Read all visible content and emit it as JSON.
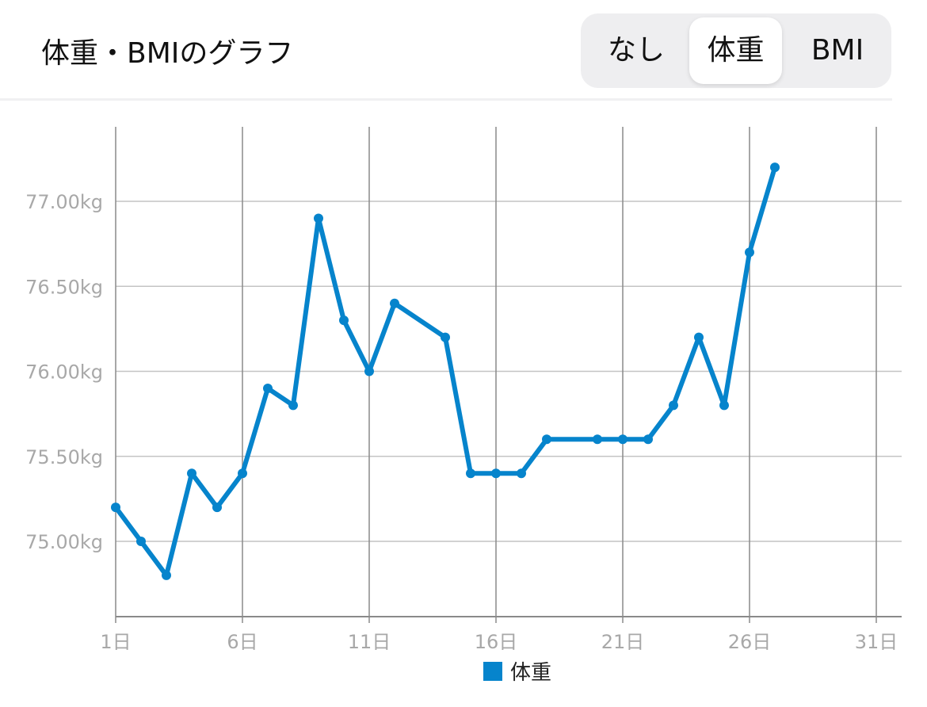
{
  "header": {
    "title": "体重・BMIのグラフ"
  },
  "segmented": {
    "options": [
      "なし",
      "体重",
      "BMI"
    ],
    "selected": "体重"
  },
  "chart_data": {
    "type": "line",
    "x_ticks": [
      "1日",
      "6日",
      "11日",
      "16日",
      "21日",
      "26日",
      "31日"
    ],
    "x_tick_values": [
      1,
      6,
      11,
      16,
      21,
      26,
      31
    ],
    "y_ticks": [
      "75.00kg",
      "75.50kg",
      "76.00kg",
      "76.50kg",
      "77.00kg"
    ],
    "y_tick_values": [
      75.0,
      75.5,
      76.0,
      76.5,
      77.0
    ],
    "xlim": [
      1,
      32
    ],
    "ylim": [
      74.56,
      77.44
    ],
    "grid": true,
    "legend_position": "bottom",
    "series": [
      {
        "name": "体重",
        "color": "#0684cc",
        "x": [
          1,
          2,
          3,
          4,
          5,
          6,
          7,
          8,
          9,
          10,
          11,
          12,
          14,
          15,
          16,
          17,
          18,
          20,
          21,
          22,
          23,
          24,
          25,
          26,
          27
        ],
        "y": [
          75.2,
          75.0,
          74.8,
          75.4,
          75.2,
          75.4,
          75.9,
          75.8,
          76.9,
          76.3,
          76.0,
          76.4,
          76.2,
          75.4,
          75.4,
          75.4,
          75.6,
          75.6,
          75.6,
          75.6,
          75.8,
          76.2,
          75.8,
          76.7,
          77.2
        ]
      }
    ]
  }
}
